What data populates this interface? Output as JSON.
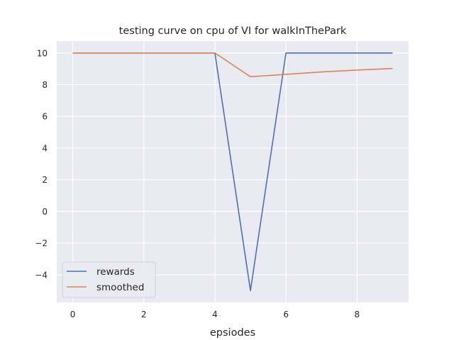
{
  "chart_data": {
    "type": "line",
    "title": "testing curve on cpu of VI for walkInThePark",
    "xlabel": "epsiodes",
    "ylabel": "",
    "x": [
      0,
      1,
      2,
      3,
      4,
      5,
      6,
      7,
      8,
      9
    ],
    "xlim": [
      -0.45,
      9.45
    ],
    "ylim": [
      -5.75,
      10.75
    ],
    "xticks": [
      0,
      2,
      4,
      6,
      8
    ],
    "yticks": [
      -4,
      -2,
      0,
      2,
      4,
      6,
      8,
      10
    ],
    "ytick_labels": [
      "−4",
      "−2",
      "0",
      "2",
      "4",
      "6",
      "8",
      "10"
    ],
    "grid": true,
    "legend_position": "lower-left",
    "series": [
      {
        "name": "rewards",
        "color": "#4c72b0",
        "values": [
          10,
          10,
          10,
          10,
          10,
          -5,
          10,
          10,
          10,
          10
        ]
      },
      {
        "name": "smoothed",
        "color": "#dd8452",
        "values": [
          10,
          10,
          10,
          10,
          10,
          8.5,
          8.65,
          8.8,
          8.92,
          9.02
        ]
      }
    ]
  }
}
